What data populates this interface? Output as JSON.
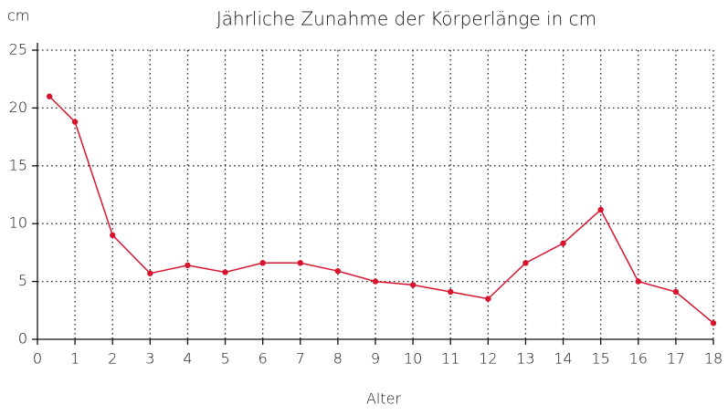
{
  "chart_data": {
    "type": "line",
    "title": "Jährliche Zunahme der Körperlänge in cm",
    "y_label": "cm",
    "x_label": "Alter",
    "series": [
      {
        "color": "#d7142d",
        "x": [
          0.32,
          1,
          2,
          3,
          4,
          5,
          6,
          7,
          8,
          9,
          10,
          11,
          12,
          13,
          14,
          15,
          16,
          17,
          18
        ],
        "values": [
          21.0,
          18.8,
          9.0,
          5.7,
          6.4,
          5.8,
          6.6,
          6.6,
          5.9,
          5.0,
          4.7,
          4.1,
          3.5,
          6.6,
          8.3,
          11.2,
          5.0,
          4.1,
          1.4
        ]
      }
    ],
    "xlim": [
      0,
      18
    ],
    "ylim": [
      0,
      25
    ],
    "xticks": [
      0,
      1,
      2,
      3,
      4,
      5,
      6,
      7,
      8,
      9,
      10,
      11,
      12,
      13,
      14,
      15,
      16,
      17,
      18
    ],
    "yticks": [
      0,
      5,
      10,
      15,
      20,
      25
    ],
    "grid": true
  }
}
